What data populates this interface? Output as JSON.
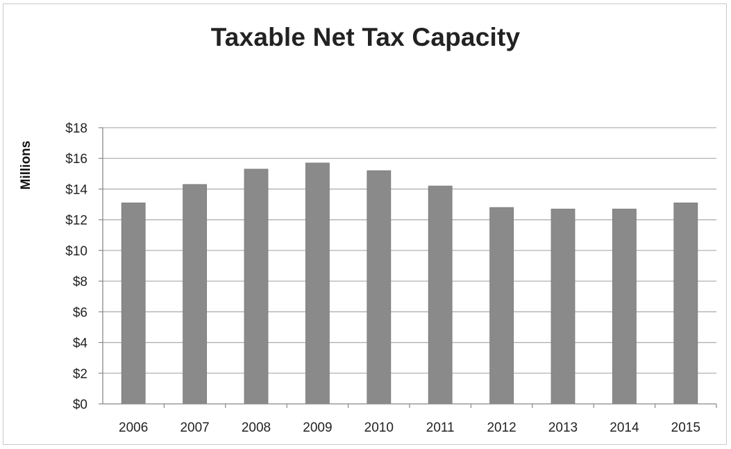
{
  "chart_data": {
    "type": "bar",
    "title": "Taxable Net Tax Capacity",
    "ylabel": "Millions",
    "xlabel": "",
    "categories": [
      "2006",
      "2007",
      "2008",
      "2009",
      "2010",
      "2011",
      "2012",
      "2013",
      "2014",
      "2015"
    ],
    "values": [
      13.1,
      14.3,
      15.3,
      15.7,
      15.2,
      14.2,
      12.8,
      12.7,
      12.7,
      13.1
    ],
    "ylim": [
      0,
      18
    ],
    "yticks": [
      0,
      2,
      4,
      6,
      8,
      10,
      12,
      14,
      16,
      18
    ],
    "ytick_labels": [
      "$0",
      "$2",
      "$4",
      "$6",
      "$8",
      "$10",
      "$12",
      "$14",
      "$16",
      "$18"
    ],
    "grid": true,
    "legend": "none",
    "bar_color": "#8a8a8a",
    "grid_color": "#b0b0b0"
  }
}
